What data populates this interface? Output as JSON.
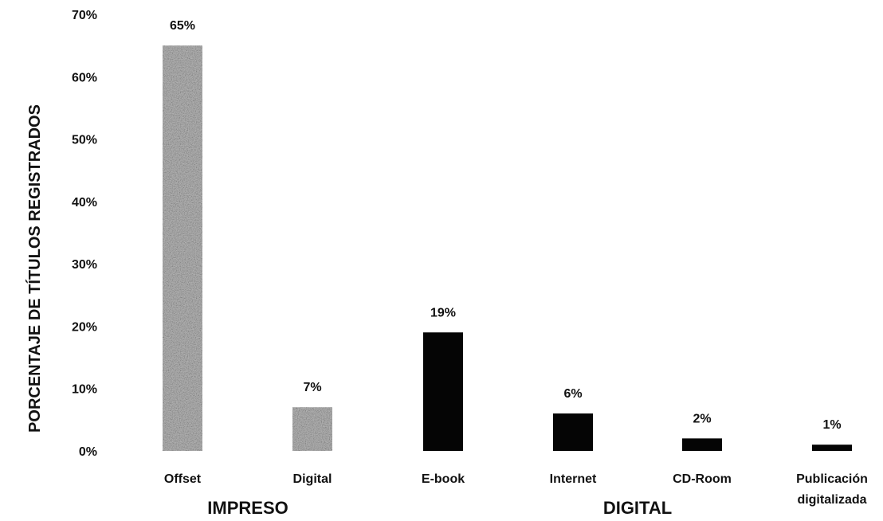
{
  "chart_data": {
    "type": "bar",
    "title": "",
    "ylabel": "PORCENTAJE DE TÍTULOS REGISTRADOS",
    "xlabel": "",
    "ylim": [
      0,
      70
    ],
    "yticks": [
      0,
      10,
      20,
      30,
      40,
      50,
      60,
      70
    ],
    "ytick_labels": [
      "0%",
      "10%",
      "20%",
      "30%",
      "40%",
      "50%",
      "60%",
      "70%"
    ],
    "grid": false,
    "categories": [
      "Offset",
      "Digital",
      "E-book",
      "Internet",
      "CD-Room",
      [
        "Publicación",
        "digitalizada"
      ]
    ],
    "values": [
      65,
      7,
      19,
      6,
      2,
      1
    ],
    "data_labels": [
      "65%",
      "7%",
      "19%",
      "6%",
      "2%",
      "1%"
    ],
    "bar_fills": [
      "gray-stipple",
      "gray-stipple",
      "black",
      "black",
      "black",
      "black"
    ],
    "colors": {
      "gray": "#3a3a3a",
      "black": "#050505"
    },
    "groups": [
      {
        "label": "IMPRESO",
        "categories": [
          "Offset",
          "Digital"
        ]
      },
      {
        "label": "DIGITAL",
        "categories": [
          "E-book",
          "Internet",
          "CD-Room",
          "Publicación digitalizada"
        ]
      }
    ]
  }
}
